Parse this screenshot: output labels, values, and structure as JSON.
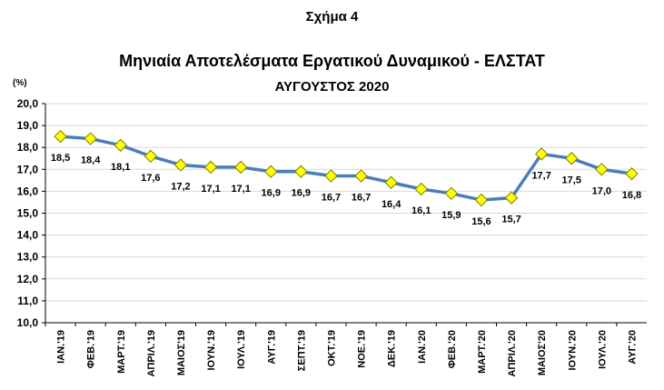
{
  "figure_label": "Σχήμα 4",
  "chart_data": {
    "type": "line",
    "title": "Μηνιαία Αποτελέσματα Εργατικού Δυναμικού - ΕΛΣΤΑΤ",
    "subtitle": "ΑΥΓΟΥΣΤΟΣ 2020",
    "ylabel": "(%)",
    "xlabel": "",
    "ylim": [
      10,
      20
    ],
    "ytick_step": 1,
    "yticks": [
      "10,0",
      "11,0",
      "12,0",
      "13,0",
      "14,0",
      "15,0",
      "16,0",
      "17,0",
      "18,0",
      "19,0",
      "20,0"
    ],
    "grid": true,
    "categories": [
      "ΙΑΝ.'19",
      "ΦΕΒ.'19",
      "ΜΑΡΤ.'19",
      "ΑΠΡΙΛ.'19",
      "ΜΑΙΟΣ'19",
      "ΙΟΥΝ.'19",
      "ΙΟΥΛ.'19",
      "ΑΥΓ.'19",
      "ΣΕΠΤ.'19",
      "ΟΚΤ.'19",
      "ΝΟΕ.'19",
      "ΔΕΚ.'19",
      "ΙΑΝ.'20",
      "ΦΕΒ.'20",
      "ΜΑΡΤ.'20",
      "ΑΠΡΙΛ.'20",
      "ΜΑΙΟΣ'20",
      "ΙΟΥΝ.'20",
      "ΙΟΥΛ.'20",
      "ΑΥΓ.'20"
    ],
    "values": [
      18.5,
      18.4,
      18.1,
      17.6,
      17.2,
      17.1,
      17.1,
      16.9,
      16.9,
      16.7,
      16.7,
      16.4,
      16.1,
      15.9,
      15.6,
      15.7,
      17.7,
      17.5,
      17.0,
      16.8
    ],
    "data_labels": [
      "18,5",
      "18,4",
      "18,1",
      "17,6",
      "17,2",
      "17,1",
      "17,1",
      "16,9",
      "16,9",
      "16,7",
      "16,7",
      "16,4",
      "16,1",
      "15,9",
      "15,6",
      "15,7",
      "17,7",
      "17,5",
      "17,0",
      "16,8"
    ],
    "line_color": "#4a7ebb",
    "marker": "diamond",
    "marker_color": "#ffff00",
    "marker_edge_color": "#7f7f00",
    "grid_color": "#d9d9d9"
  }
}
